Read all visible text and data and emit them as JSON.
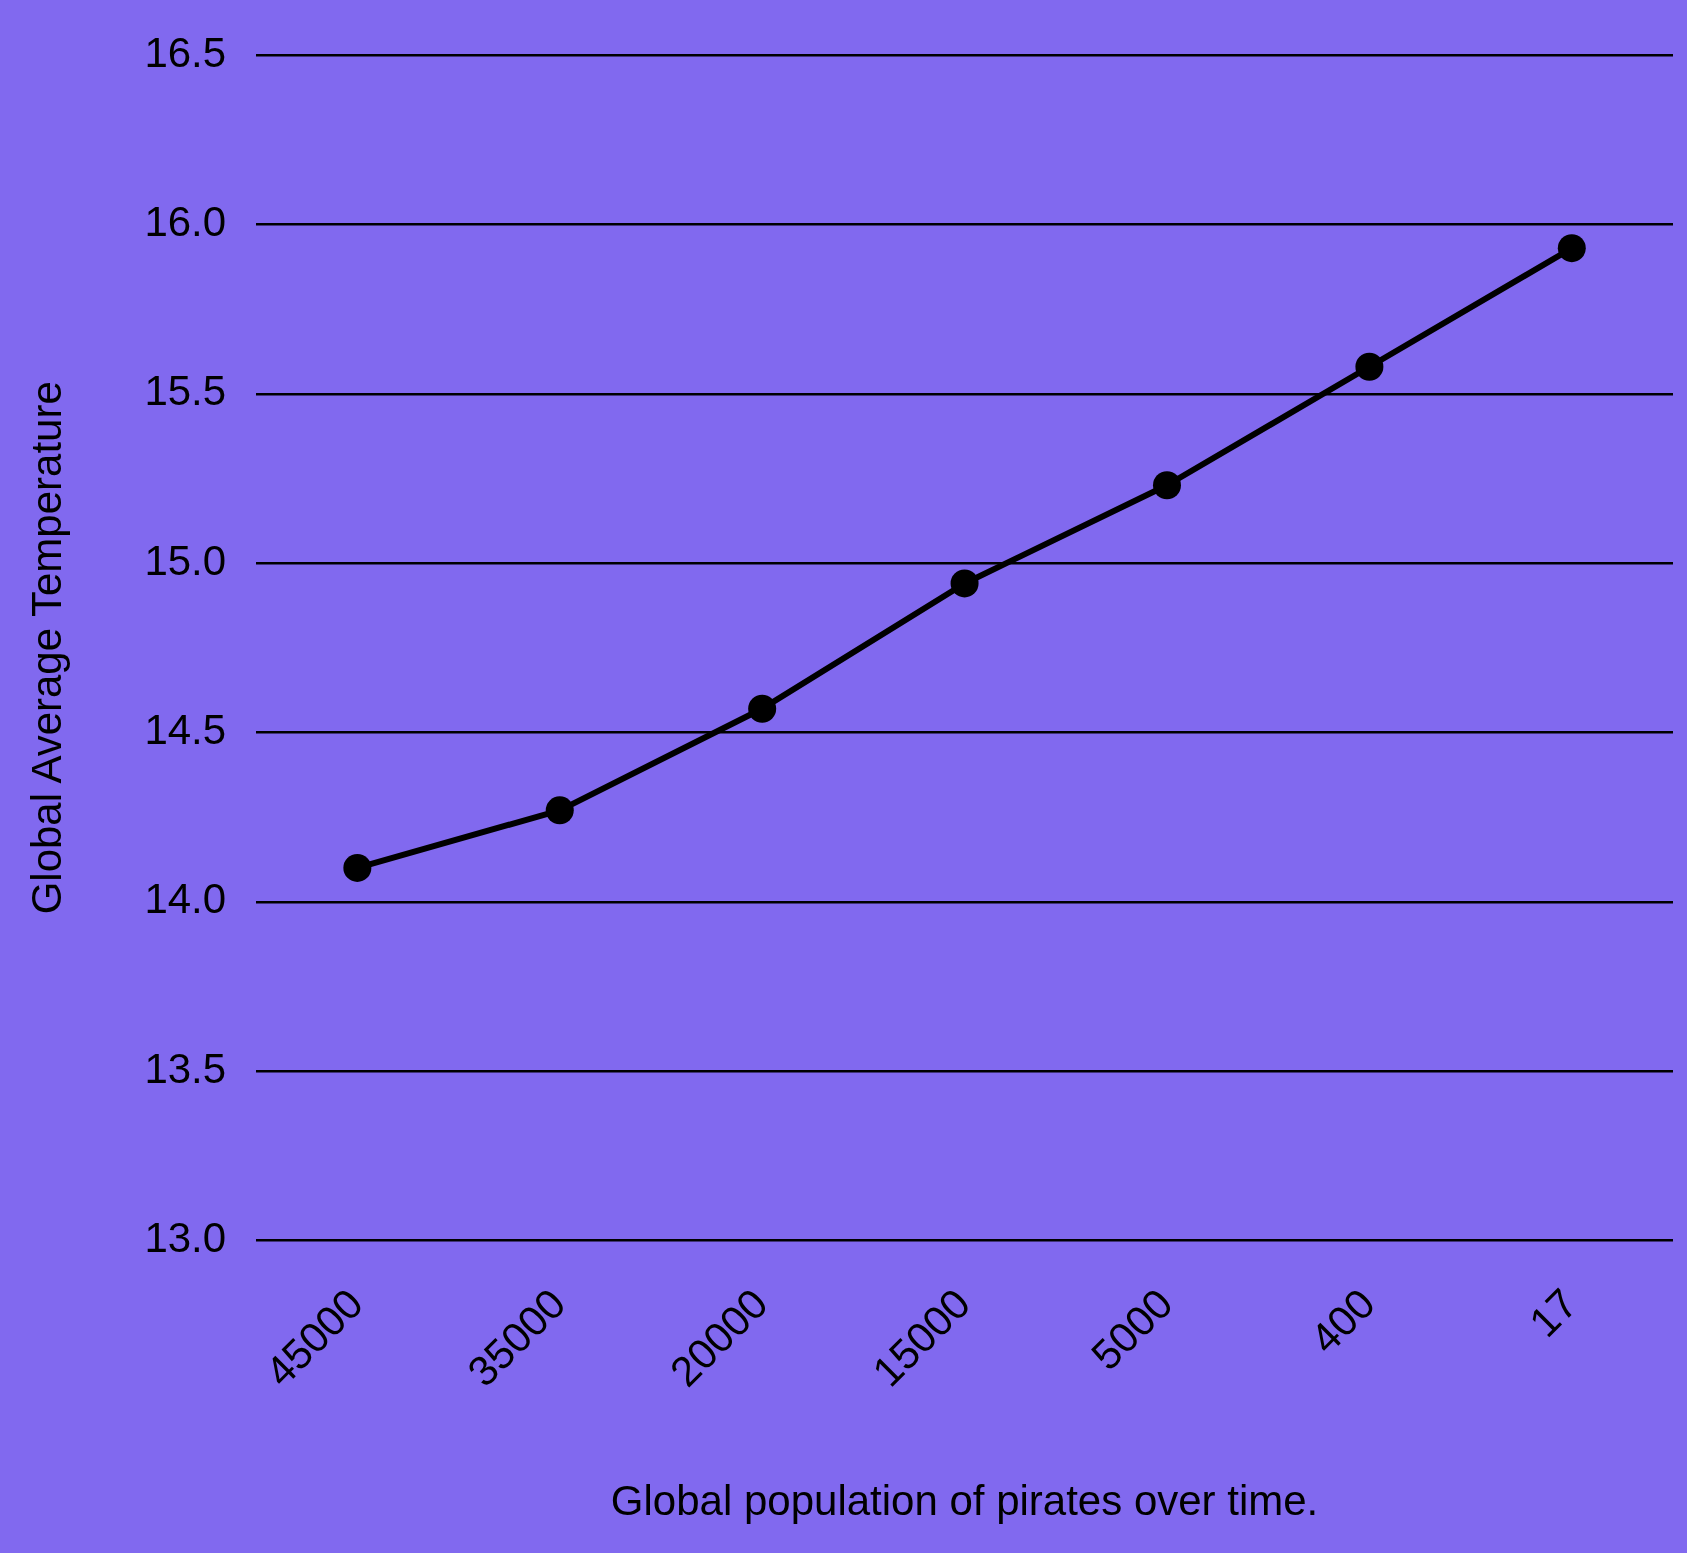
{
  "chart_data": {
    "type": "line",
    "xlabel": "Global population of pirates over time.",
    "ylabel": "Global Average Temperature",
    "categories": [
      "45000",
      "35000",
      "20000",
      "15000",
      "5000",
      "400",
      "17"
    ],
    "series": [
      {
        "color": "#000000",
        "values": [
          14.1,
          14.27,
          14.57,
          14.94,
          15.23,
          15.58,
          15.93
        ]
      }
    ],
    "ylim": [
      13,
      16.5
    ],
    "yticks": [
      {
        "value": 13,
        "label": "13.0"
      },
      {
        "value": 13.5,
        "label": "13.5"
      },
      {
        "value": 14,
        "label": "14.0"
      },
      {
        "value": 14.5,
        "label": "14.5"
      },
      {
        "value": 15,
        "label": "15.0"
      },
      {
        "value": 15.5,
        "label": "15.5"
      },
      {
        "value": 16,
        "label": "16.0"
      },
      {
        "value": 16.5,
        "label": "16.5"
      }
    ],
    "grid": "y",
    "marker": "circle",
    "line_style": "solid",
    "legend": false
  }
}
